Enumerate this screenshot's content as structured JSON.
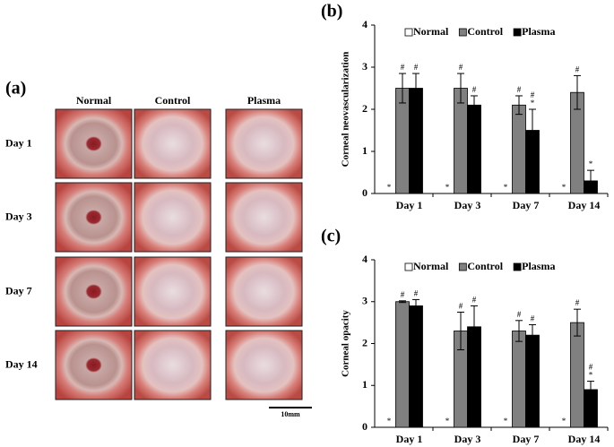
{
  "photo_panel": {
    "label": "(a)",
    "columns": [
      "Normal",
      "Control",
      "Plasma"
    ],
    "rows": [
      "Day 1",
      "Day 3",
      "Day 7",
      "Day 14"
    ],
    "scale_bar": "10mm"
  },
  "chart_data": [
    {
      "type": "bar",
      "label": "(b)",
      "y_label": "Corneal neovascularization",
      "categories": [
        "Day 1",
        "Day 3",
        "Day 7",
        "Day 14"
      ],
      "series": [
        {
          "name": "Normal",
          "color": "#ffffff",
          "values": [
            0,
            0,
            0,
            0
          ],
          "annotations": [
            [
              "*"
            ],
            [
              "*"
            ],
            [
              "*"
            ],
            [
              "*"
            ]
          ]
        },
        {
          "name": "Control",
          "color": "#808080",
          "values": [
            2.5,
            2.5,
            2.1,
            2.4
          ],
          "errors": [
            0.35,
            0.35,
            0.22,
            0.4
          ],
          "annotations": [
            [
              "#"
            ],
            [
              "#"
            ],
            [
              "#"
            ],
            [
              "#"
            ]
          ]
        },
        {
          "name": "Plasma",
          "color": "#000000",
          "values": [
            2.5,
            2.1,
            1.5,
            0.3
          ],
          "errors": [
            0.35,
            0.22,
            0.5,
            0.25
          ],
          "annotations": [
            [
              "#"
            ],
            [
              "#"
            ],
            [
              "*",
              "#"
            ],
            [
              "*"
            ]
          ]
        }
      ],
      "ylim": [
        0,
        4
      ],
      "yticks": [
        0,
        1,
        2,
        3,
        4
      ],
      "legend": "top"
    },
    {
      "type": "bar",
      "label": "(c)",
      "y_label": "Corneal opacity",
      "categories": [
        "Day 1",
        "Day 3",
        "Day 7",
        "Day 14"
      ],
      "series": [
        {
          "name": "Normal",
          "color": "#ffffff",
          "values": [
            0,
            0,
            0,
            0
          ],
          "annotations": [
            [
              "*"
            ],
            [
              "*"
            ],
            [
              "*"
            ],
            [
              "*"
            ]
          ]
        },
        {
          "name": "Control",
          "color": "#808080",
          "values": [
            3.0,
            2.3,
            2.3,
            2.5
          ],
          "errors": [
            0.02,
            0.45,
            0.25,
            0.32
          ],
          "annotations": [
            [
              "#"
            ],
            [
              "#"
            ],
            [
              "#"
            ],
            [
              "#"
            ]
          ]
        },
        {
          "name": "Plasma",
          "color": "#000000",
          "values": [
            2.9,
            2.4,
            2.2,
            0.9
          ],
          "errors": [
            0.15,
            0.5,
            0.25,
            0.2
          ],
          "annotations": [
            [
              "#"
            ],
            [
              "#"
            ],
            [
              "#"
            ],
            [
              "*",
              "#"
            ]
          ]
        }
      ],
      "ylim": [
        0,
        4
      ],
      "yticks": [
        0,
        1,
        2,
        3,
        4
      ],
      "legend": "top"
    }
  ]
}
